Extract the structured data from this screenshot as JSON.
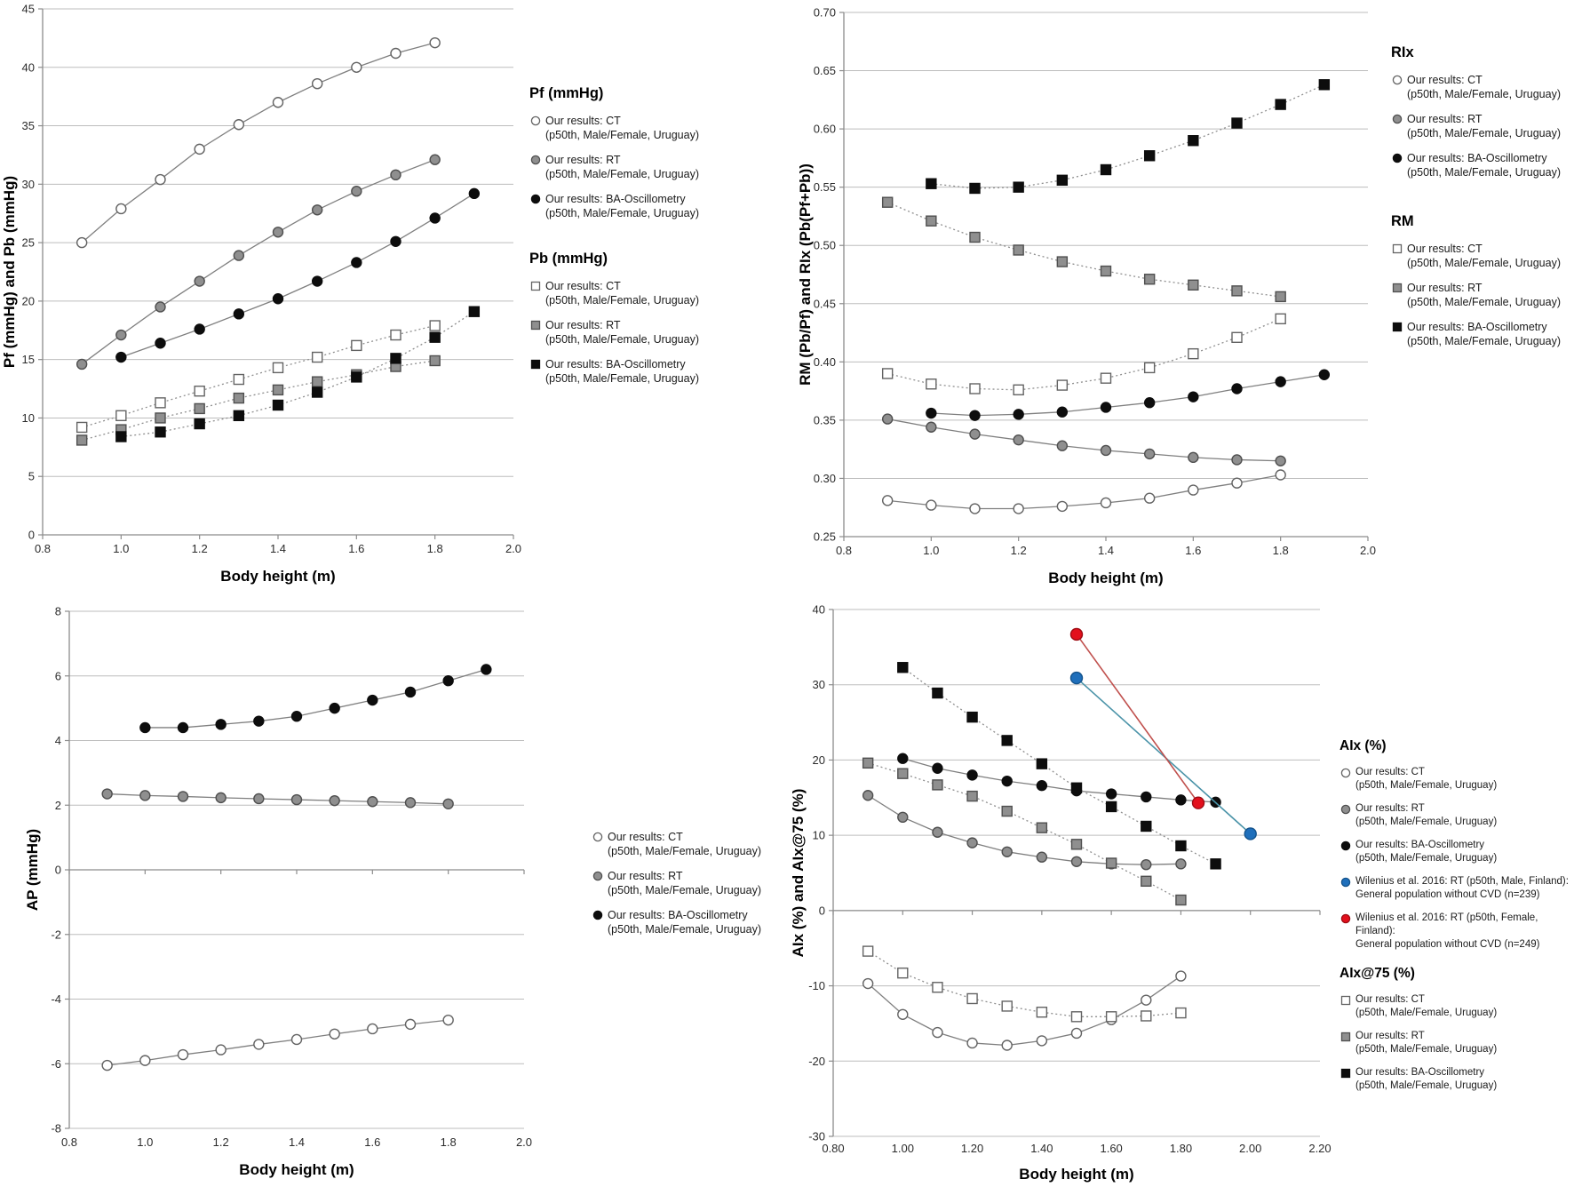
{
  "chart_data": [
    {
      "type": "line",
      "id": "pf-pb",
      "y_title": "Pf (mmHg) and Pb (mmHg)",
      "x_title": "Body height (m)",
      "x_tick_labels": [
        "0.8",
        "1.0",
        "1.2",
        "1.4",
        "1.6",
        "1.8",
        "2.0"
      ],
      "y_tick_labels": [
        "0",
        "5",
        "10",
        "15",
        "20",
        "25",
        "30",
        "35",
        "40",
        "45"
      ],
      "x_range": [
        0.8,
        2.0
      ],
      "y_range": [
        0,
        45
      ],
      "grid": true,
      "series": [
        {
          "name": "pf-ct",
          "marker": "circle",
          "fill": "open",
          "line": "solid",
          "x": [
            0.9,
            1.0,
            1.1,
            1.2,
            1.3,
            1.4,
            1.5,
            1.6,
            1.7,
            1.8
          ],
          "y": [
            25.0,
            27.9,
            30.4,
            33.0,
            35.1,
            37.0,
            38.6,
            40.0,
            41.2,
            42.1
          ]
        },
        {
          "name": "pf-rt",
          "marker": "circle",
          "fill": "gray",
          "line": "solid",
          "x": [
            0.9,
            1.0,
            1.1,
            1.2,
            1.3,
            1.4,
            1.5,
            1.6,
            1.7,
            1.8
          ],
          "y": [
            14.6,
            17.1,
            19.5,
            21.7,
            23.9,
            25.9,
            27.8,
            29.4,
            30.8,
            32.1
          ]
        },
        {
          "name": "pf-ba",
          "marker": "circle",
          "fill": "black",
          "line": "solid",
          "x": [
            1.0,
            1.1,
            1.2,
            1.3,
            1.4,
            1.5,
            1.6,
            1.7,
            1.8,
            1.9
          ],
          "y": [
            15.2,
            16.4,
            17.6,
            18.9,
            20.2,
            21.7,
            23.3,
            25.1,
            27.1,
            29.2
          ]
        },
        {
          "name": "pb-ct",
          "marker": "square",
          "fill": "open",
          "line": "dotted",
          "x": [
            0.9,
            1.0,
            1.1,
            1.2,
            1.3,
            1.4,
            1.5,
            1.6,
            1.7,
            1.8
          ],
          "y": [
            9.2,
            10.2,
            11.3,
            12.3,
            13.3,
            14.3,
            15.2,
            16.2,
            17.1,
            17.9
          ]
        },
        {
          "name": "pb-rt",
          "marker": "square",
          "fill": "gray",
          "line": "dotted",
          "x": [
            0.9,
            1.0,
            1.1,
            1.2,
            1.3,
            1.4,
            1.5,
            1.6,
            1.7,
            1.8
          ],
          "y": [
            8.1,
            9.0,
            10.0,
            10.8,
            11.7,
            12.4,
            13.1,
            13.7,
            14.4,
            14.9
          ]
        },
        {
          "name": "pb-ba",
          "marker": "square",
          "fill": "black",
          "line": "dotted",
          "x": [
            1.0,
            1.1,
            1.2,
            1.3,
            1.4,
            1.5,
            1.6,
            1.7,
            1.8,
            1.9
          ],
          "y": [
            8.4,
            8.8,
            9.5,
            10.2,
            11.1,
            12.2,
            13.5,
            15.1,
            16.9,
            19.1
          ]
        }
      ],
      "legend_groups": [
        {
          "title": "Pf (mmHg)",
          "items": [
            {
              "marker": "circle-open",
              "line1": "Our results: CT",
              "line2": "(p50th, Male/Female, Uruguay)"
            },
            {
              "marker": "circle-gray",
              "line1": "Our results: RT",
              "line2": "(p50th, Male/Female, Uruguay)"
            },
            {
              "marker": "circle-black",
              "line1": "Our results: BA-Oscillometry",
              "line2": "(p50th, Male/Female, Uruguay)"
            }
          ]
        },
        {
          "title": "Pb (mmHg)",
          "items": [
            {
              "marker": "square-open",
              "line1": "Our results: CT",
              "line2": "(p50th, Male/Female, Uruguay)"
            },
            {
              "marker": "square-gray",
              "line1": "Our results: RT",
              "line2": "(p50th, Male/Female, Uruguay)"
            },
            {
              "marker": "square-black",
              "line1": "Our results: BA-Oscillometry",
              "line2": "(p50th, Male/Female, Uruguay)"
            }
          ]
        }
      ]
    },
    {
      "type": "line",
      "id": "rm-rix",
      "y_title": "RM (Pb/Pf) and RIx (Pb(Pf+Pb))",
      "x_title": "Body height (m)",
      "x_tick_labels": [
        "0.8",
        "1.0",
        "1.2",
        "1.4",
        "1.6",
        "1.8",
        "2.0"
      ],
      "y_tick_labels": [
        "0.25",
        "0.30",
        "0.35",
        "0.40",
        "0.45",
        "0.50",
        "0.55",
        "0.60",
        "0.65",
        "0.70"
      ],
      "x_range": [
        0.8,
        2.0
      ],
      "y_range": [
        0.25,
        0.7
      ],
      "grid": true,
      "series": [
        {
          "name": "rix-ct",
          "marker": "circle",
          "fill": "open",
          "line": "solid",
          "x": [
            0.9,
            1.0,
            1.1,
            1.2,
            1.3,
            1.4,
            1.5,
            1.6,
            1.7,
            1.8
          ],
          "y": [
            0.281,
            0.277,
            0.274,
            0.274,
            0.276,
            0.279,
            0.283,
            0.29,
            0.296,
            0.303
          ]
        },
        {
          "name": "rix-rt",
          "marker": "circle",
          "fill": "gray",
          "line": "solid",
          "x": [
            0.9,
            1.0,
            1.1,
            1.2,
            1.3,
            1.4,
            1.5,
            1.6,
            1.7,
            1.8
          ],
          "y": [
            0.351,
            0.344,
            0.338,
            0.333,
            0.328,
            0.324,
            0.321,
            0.318,
            0.316,
            0.315
          ]
        },
        {
          "name": "rix-ba",
          "marker": "circle",
          "fill": "black",
          "line": "solid",
          "x": [
            1.0,
            1.1,
            1.2,
            1.3,
            1.4,
            1.5,
            1.6,
            1.7,
            1.8,
            1.9
          ],
          "y": [
            0.356,
            0.354,
            0.355,
            0.357,
            0.361,
            0.365,
            0.37,
            0.377,
            0.383,
            0.389
          ]
        },
        {
          "name": "rm-ct",
          "marker": "square",
          "fill": "open",
          "line": "dotted",
          "x": [
            0.9,
            1.0,
            1.1,
            1.2,
            1.3,
            1.4,
            1.5,
            1.6,
            1.7,
            1.8
          ],
          "y": [
            0.39,
            0.381,
            0.377,
            0.376,
            0.38,
            0.386,
            0.395,
            0.407,
            0.421,
            0.437
          ]
        },
        {
          "name": "rm-rt",
          "marker": "square",
          "fill": "gray",
          "line": "dotted",
          "x": [
            0.9,
            1.0,
            1.1,
            1.2,
            1.3,
            1.4,
            1.5,
            1.6,
            1.7,
            1.8
          ],
          "y": [
            0.537,
            0.521,
            0.507,
            0.496,
            0.486,
            0.478,
            0.471,
            0.466,
            0.461,
            0.456
          ]
        },
        {
          "name": "rm-ba",
          "marker": "square",
          "fill": "black",
          "line": "dotted",
          "x": [
            1.0,
            1.1,
            1.2,
            1.3,
            1.4,
            1.5,
            1.6,
            1.7,
            1.8,
            1.9
          ],
          "y": [
            0.553,
            0.549,
            0.55,
            0.556,
            0.565,
            0.577,
            0.59,
            0.605,
            0.621,
            0.638
          ]
        }
      ],
      "legend_groups": [
        {
          "title": "RIx",
          "items": [
            {
              "marker": "circle-open",
              "line1": "Our results: CT",
              "line2": "(p50th, Male/Female, Uruguay)"
            },
            {
              "marker": "circle-gray",
              "line1": "Our results: RT",
              "line2": "(p50th, Male/Female, Uruguay)"
            },
            {
              "marker": "circle-black",
              "line1": "Our results: BA-Oscillometry",
              "line2": "(p50th, Male/Female, Uruguay)"
            }
          ]
        },
        {
          "title": "RM",
          "items": [
            {
              "marker": "square-open",
              "line1": "Our results: CT",
              "line2": "(p50th, Male/Female, Uruguay)"
            },
            {
              "marker": "square-gray",
              "line1": "Our results: RT",
              "line2": "(p50th, Male/Female, Uruguay)"
            },
            {
              "marker": "square-black",
              "line1": "Our results: BA-Oscillometry",
              "line2": "(p50th, Male/Female, Uruguay)"
            }
          ]
        }
      ]
    },
    {
      "type": "line",
      "id": "ap",
      "y_title": "AP (mmHg)",
      "x_title": "Body height (m)",
      "x_tick_labels": [
        "0.8",
        "1.0",
        "1.2",
        "1.4",
        "1.6",
        "1.8",
        "2.0"
      ],
      "y_tick_labels": [
        "-8",
        "-6",
        "-4",
        "-2",
        "0",
        "2",
        "4",
        "6",
        "8"
      ],
      "x_range": [
        0.8,
        2.0
      ],
      "y_range": [
        -8,
        8
      ],
      "grid": true,
      "series": [
        {
          "name": "ap-ct",
          "marker": "circle",
          "fill": "open",
          "line": "solid",
          "x": [
            0.9,
            1.0,
            1.1,
            1.2,
            1.3,
            1.4,
            1.5,
            1.6,
            1.7,
            1.8
          ],
          "y": [
            -6.05,
            -5.9,
            -5.72,
            -5.57,
            -5.4,
            -5.25,
            -5.08,
            -4.92,
            -4.78,
            -4.65
          ]
        },
        {
          "name": "ap-rt",
          "marker": "circle",
          "fill": "gray",
          "line": "solid",
          "x": [
            0.9,
            1.0,
            1.1,
            1.2,
            1.3,
            1.4,
            1.5,
            1.6,
            1.7,
            1.8
          ],
          "y": [
            2.35,
            2.3,
            2.27,
            2.23,
            2.2,
            2.17,
            2.14,
            2.11,
            2.08,
            2.04
          ]
        },
        {
          "name": "ap-ba",
          "marker": "circle",
          "fill": "black",
          "line": "solid",
          "x": [
            1.0,
            1.1,
            1.2,
            1.3,
            1.4,
            1.5,
            1.6,
            1.7,
            1.8,
            1.9
          ],
          "y": [
            4.4,
            4.4,
            4.5,
            4.6,
            4.75,
            5.0,
            5.25,
            5.5,
            5.85,
            6.2
          ]
        }
      ],
      "legend_groups": [
        {
          "title": "",
          "items": [
            {
              "marker": "circle-open",
              "line1": "Our results: CT",
              "line2": "(p50th, Male/Female, Uruguay)"
            },
            {
              "marker": "circle-gray",
              "line1": "Our results: RT",
              "line2": "(p50th, Male/Female, Uruguay)"
            },
            {
              "marker": "circle-black",
              "line1": "Our results: BA-Oscillometry",
              "line2": "(p50th, Male/Female, Uruguay)"
            }
          ]
        }
      ]
    },
    {
      "type": "line",
      "id": "aix",
      "y_title": "AIx (%) and AIx@75 (%)",
      "x_title": "Body height (m)",
      "x_tick_labels": [
        "0.80",
        "1.00",
        "1.20",
        "1.40",
        "1.60",
        "1.80",
        "2.00",
        "2.20"
      ],
      "y_tick_labels": [
        "-30",
        "-20",
        "-10",
        "0",
        "10",
        "20",
        "30",
        "40"
      ],
      "x_range": [
        0.8,
        2.2
      ],
      "y_range": [
        -30,
        40
      ],
      "grid": true,
      "series": [
        {
          "name": "aix-ct",
          "marker": "circle",
          "fill": "open",
          "line": "solid",
          "x": [
            0.9,
            1.0,
            1.1,
            1.2,
            1.3,
            1.4,
            1.5,
            1.6,
            1.7,
            1.8
          ],
          "y": [
            -9.7,
            -13.8,
            -16.2,
            -17.6,
            -17.9,
            -17.3,
            -16.3,
            -14.5,
            -11.9,
            -8.7
          ]
        },
        {
          "name": "aix-rt",
          "marker": "circle",
          "fill": "gray",
          "line": "solid",
          "x": [
            0.9,
            1.0,
            1.1,
            1.2,
            1.3,
            1.4,
            1.5,
            1.6,
            1.7,
            1.8
          ],
          "y": [
            15.3,
            12.4,
            10.4,
            9.0,
            7.8,
            7.1,
            6.5,
            6.2,
            6.1,
            6.2
          ]
        },
        {
          "name": "aix-ba",
          "marker": "circle",
          "fill": "black",
          "line": "solid",
          "x": [
            1.0,
            1.1,
            1.2,
            1.3,
            1.4,
            1.5,
            1.6,
            1.7,
            1.8,
            1.9
          ],
          "y": [
            20.2,
            18.9,
            18.0,
            17.2,
            16.6,
            15.9,
            15.5,
            15.1,
            14.7,
            14.4
          ]
        },
        {
          "name": "aix75-ct",
          "marker": "square",
          "fill": "open",
          "line": "dotted",
          "x": [
            0.9,
            1.0,
            1.1,
            1.2,
            1.3,
            1.4,
            1.5,
            1.6,
            1.7,
            1.8
          ],
          "y": [
            -5.4,
            -8.3,
            -10.2,
            -11.7,
            -12.7,
            -13.5,
            -14.1,
            -14.1,
            -14.0,
            -13.6
          ]
        },
        {
          "name": "aix75-rt",
          "marker": "square",
          "fill": "gray",
          "line": "dotted",
          "x": [
            0.9,
            1.0,
            1.1,
            1.2,
            1.3,
            1.4,
            1.5,
            1.6,
            1.7,
            1.8
          ],
          "y": [
            19.6,
            18.2,
            16.7,
            15.2,
            13.2,
            11.0,
            8.8,
            6.3,
            3.9,
            1.4
          ]
        },
        {
          "name": "aix75-ba",
          "marker": "square",
          "fill": "black",
          "line": "dotted",
          "x": [
            1.0,
            1.1,
            1.2,
            1.3,
            1.4,
            1.5,
            1.6,
            1.7,
            1.8,
            1.9
          ],
          "y": [
            32.3,
            28.9,
            25.7,
            22.6,
            19.5,
            16.3,
            13.8,
            11.2,
            8.6,
            6.2
          ]
        },
        {
          "name": "wilenius-male",
          "marker": "circle",
          "fill": "blue",
          "line": "solid",
          "line_color": "#4a93a8",
          "x": [
            1.5,
            2.0
          ],
          "y": [
            30.9,
            10.2
          ]
        },
        {
          "name": "wilenius-female",
          "marker": "circle",
          "fill": "red",
          "line": "solid",
          "line_color": "#c0504d",
          "x": [
            1.5,
            1.85
          ],
          "y": [
            36.7,
            14.3
          ]
        }
      ],
      "legend_groups": [
        {
          "title": "AIx (%)",
          "items": [
            {
              "marker": "circle-open",
              "line1": "Our results: CT",
              "line2": "(p50th, Male/Female, Uruguay)"
            },
            {
              "marker": "circle-gray",
              "line1": "Our results: RT",
              "line2": "(p50th, Male/Female, Uruguay)"
            },
            {
              "marker": "circle-black",
              "line1": "Our results: BA-Oscillometry",
              "line2": "(p50th, Male/Female, Uruguay)"
            },
            {
              "marker": "circle-blue",
              "line1": "Wilenius et al. 2016: RT (p50th, Male, Finland):",
              "line2": "General population without CVD (n=239)"
            },
            {
              "marker": "circle-red",
              "line1": "Wilenius et al. 2016: RT (p50th, Female, Finland):",
              "line2": "General population without CVD (n=249)"
            }
          ]
        },
        {
          "title": "AIx@75 (%)",
          "items": [
            {
              "marker": "square-open",
              "line1": "Our results: CT",
              "line2": "(p50th, Male/Female, Uruguay)"
            },
            {
              "marker": "square-gray",
              "line1": "Our results: RT",
              "line2": "(p50th, Male/Female, Uruguay)"
            },
            {
              "marker": "square-black",
              "line1": "Our results: BA-Oscillometry",
              "line2": "(p50th, Male/Female, Uruguay)"
            }
          ]
        }
      ]
    }
  ]
}
